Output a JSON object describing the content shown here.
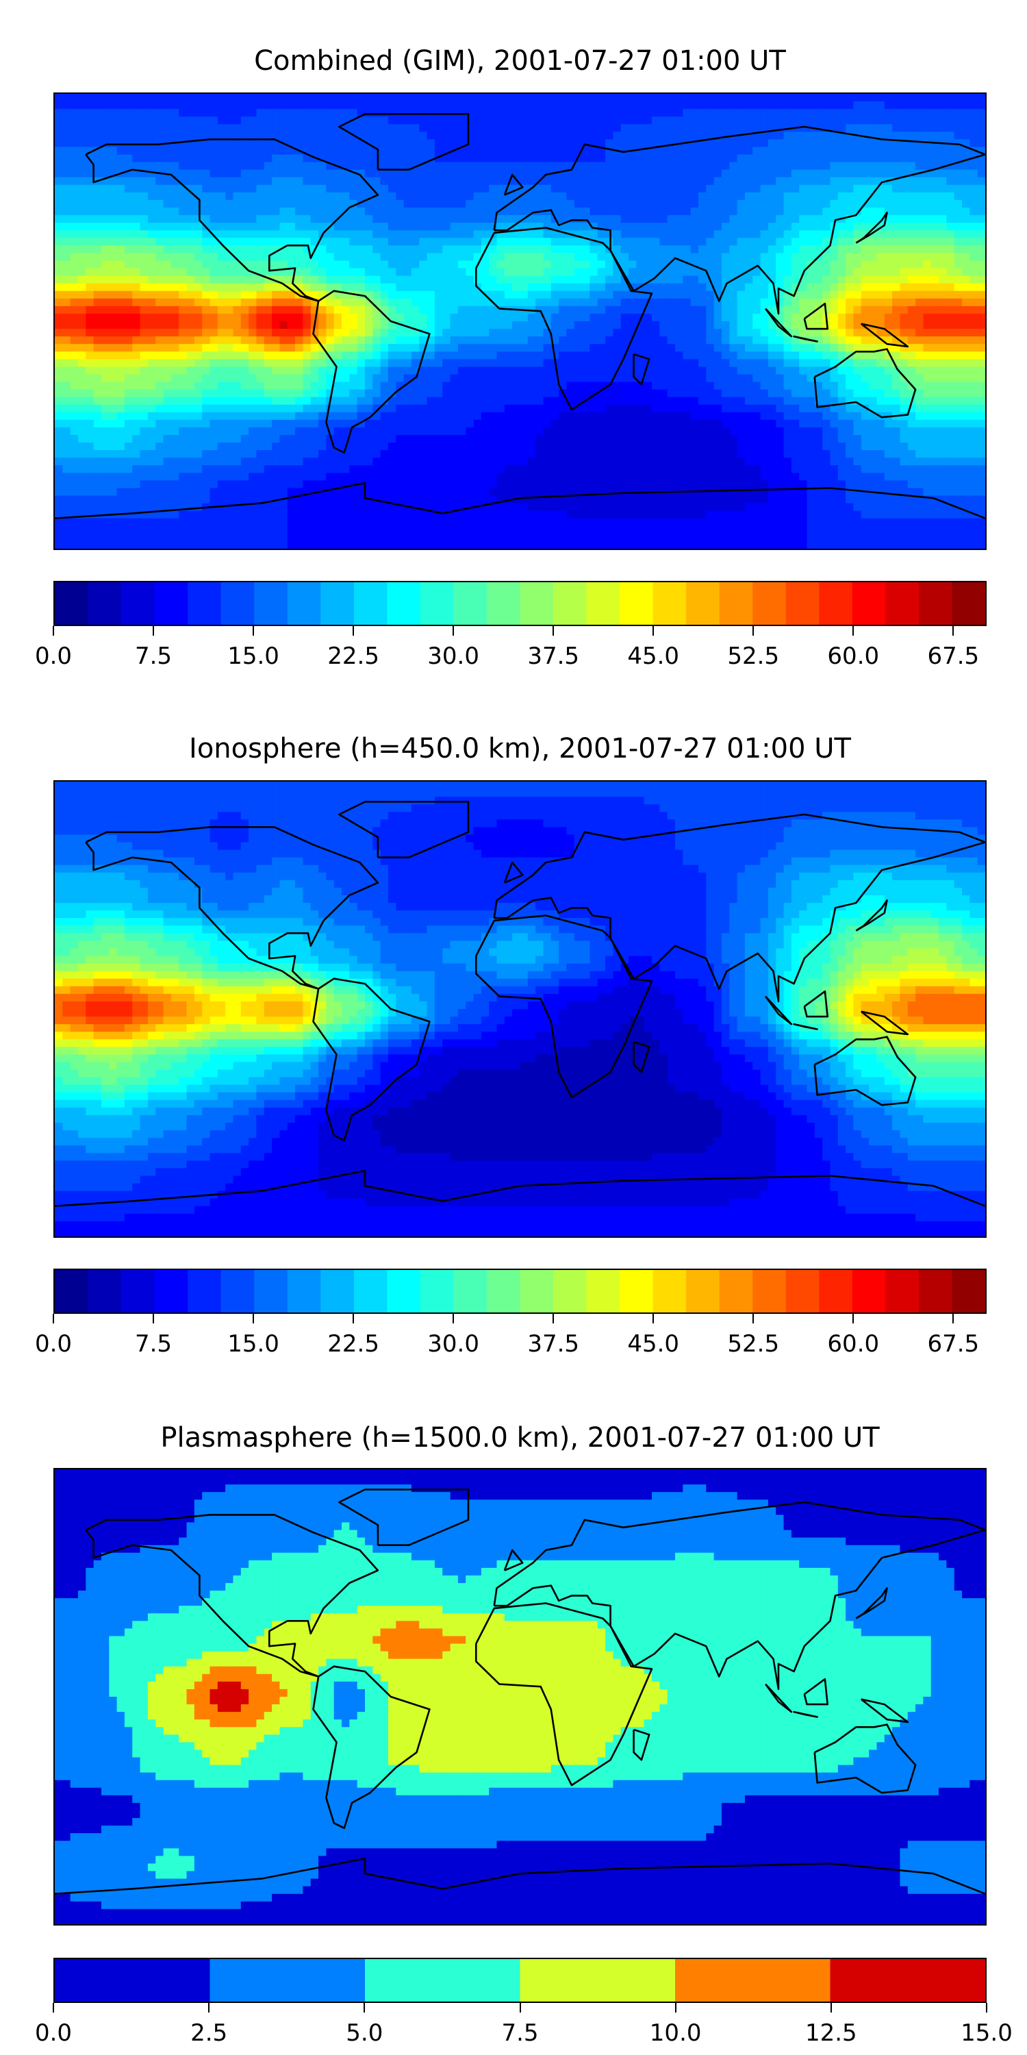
{
  "chart_data": [
    {
      "type": "heatmap",
      "title": "Combined (GIM), 2001-07-27 01:00 UT",
      "lon": [
        -180,
        -157.5,
        -135,
        -112.5,
        -90,
        -67.5,
        -45,
        -22.5,
        0,
        22.5,
        45,
        67.5,
        90,
        112.5,
        135,
        157.5,
        180
      ],
      "lat": [
        90,
        67.5,
        45,
        22.5,
        0,
        -22.5,
        -45,
        -67.5,
        -90
      ],
      "values": [
        [
          12,
          12,
          12,
          12,
          12,
          12,
          12,
          12,
          12,
          12,
          12,
          12,
          12,
          12,
          12,
          12,
          12
        ],
        [
          15,
          15,
          14,
          13,
          15,
          14,
          13,
          12,
          12,
          12,
          13,
          14,
          15,
          16,
          17,
          16,
          15
        ],
        [
          22,
          22,
          20,
          18,
          20,
          18,
          15,
          15,
          17,
          15,
          14,
          15,
          18,
          22,
          25,
          24,
          22
        ],
        [
          35,
          38,
          35,
          30,
          30,
          25,
          22,
          25,
          32,
          28,
          20,
          18,
          22,
          30,
          38,
          40,
          35
        ],
        [
          58,
          62,
          58,
          52,
          63,
          45,
          30,
          22,
          20,
          15,
          12,
          14,
          25,
          38,
          52,
          58,
          58
        ],
        [
          35,
          38,
          35,
          30,
          35,
          25,
          15,
          12,
          12,
          10,
          10,
          12,
          15,
          20,
          28,
          35,
          35
        ],
        [
          22,
          24,
          20,
          18,
          15,
          12,
          10,
          10,
          8,
          6,
          5,
          6,
          8,
          12,
          18,
          22,
          22
        ],
        [
          15,
          15,
          14,
          12,
          10,
          9,
          8,
          8,
          7,
          6,
          5,
          6,
          7,
          10,
          14,
          15,
          15
        ],
        [
          10,
          10,
          10,
          10,
          10,
          10,
          10,
          10,
          10,
          10,
          10,
          10,
          10,
          10,
          10,
          10,
          10
        ]
      ],
      "colorbar": {
        "min": 0,
        "max": 70,
        "step": 2.5,
        "colormap": "jet",
        "tick_labels": [
          "0.0",
          "7.5",
          "15.0",
          "22.5",
          "30.0",
          "37.5",
          "45.0",
          "52.5",
          "60.0",
          "67.5"
        ],
        "tick_values": [
          0,
          7.5,
          15,
          22.5,
          30,
          37.5,
          45,
          52.5,
          60,
          67.5
        ]
      }
    },
    {
      "type": "heatmap",
      "title": "Ionosphere  (h=450.0 km), 2001-07-27 01:00 UT",
      "lon": [
        -180,
        -157.5,
        -135,
        -112.5,
        -90,
        -67.5,
        -45,
        -22.5,
        0,
        22.5,
        45,
        67.5,
        90,
        112.5,
        135,
        157.5,
        180
      ],
      "lat": [
        90,
        67.5,
        45,
        22.5,
        0,
        -22.5,
        -45,
        -67.5,
        -90
      ],
      "values": [
        [
          13,
          13,
          13,
          13,
          13,
          13,
          13,
          13,
          13,
          13,
          13,
          13,
          13,
          13,
          13,
          13,
          13
        ],
        [
          15,
          15,
          14,
          12,
          14,
          13,
          12,
          10,
          9,
          10,
          11,
          13,
          14,
          16,
          17,
          16,
          15
        ],
        [
          22,
          22,
          19,
          16,
          18,
          15,
          12,
          11,
          12,
          10,
          10,
          12,
          16,
          22,
          25,
          24,
          22
        ],
        [
          32,
          35,
          32,
          26,
          24,
          20,
          16,
          18,
          22,
          16,
          10,
          12,
          18,
          28,
          36,
          38,
          32
        ],
        [
          55,
          60,
          52,
          45,
          50,
          35,
          22,
          15,
          10,
          7,
          5,
          8,
          18,
          32,
          48,
          55,
          55
        ],
        [
          32,
          35,
          30,
          25,
          22,
          15,
          8,
          5,
          5,
          4,
          4,
          6,
          10,
          18,
          26,
          32,
          32
        ],
        [
          20,
          22,
          18,
          15,
          10,
          6,
          4,
          3,
          3,
          3,
          3,
          4,
          6,
          10,
          16,
          20,
          20
        ],
        [
          13,
          13,
          12,
          10,
          8,
          7,
          6,
          6,
          6,
          6,
          6,
          6,
          7,
          9,
          12,
          13,
          13
        ],
        [
          9,
          9,
          9,
          9,
          9,
          9,
          9,
          9,
          9,
          9,
          9,
          9,
          9,
          9,
          9,
          9,
          9
        ]
      ],
      "colorbar": {
        "min": 0,
        "max": 70,
        "step": 2.5,
        "colormap": "jet",
        "tick_labels": [
          "0.0",
          "7.5",
          "15.0",
          "22.5",
          "30.0",
          "37.5",
          "45.0",
          "52.5",
          "60.0",
          "67.5"
        ],
        "tick_values": [
          0,
          7.5,
          15,
          22.5,
          30,
          37.5,
          45,
          52.5,
          60,
          67.5
        ]
      }
    },
    {
      "type": "heatmap",
      "title": "Plasmasphere (h=1500.0 km), 2001-07-27 01:00 UT",
      "lon": [
        -180,
        -157.5,
        -135,
        -112.5,
        -90,
        -67.5,
        -45,
        -22.5,
        0,
        22.5,
        45,
        67.5,
        90,
        112.5,
        135,
        157.5,
        180
      ],
      "lat": [
        90,
        67.5,
        45,
        22.5,
        0,
        -22.5,
        -45,
        -67.5,
        -90
      ],
      "values": [
        [
          2,
          2,
          2,
          2,
          2,
          2,
          2,
          2,
          2,
          2,
          2,
          2,
          2,
          2,
          2,
          2,
          2
        ],
        [
          2,
          2,
          2,
          4,
          4,
          5,
          4,
          3,
          3,
          3,
          3,
          4,
          3,
          2,
          2,
          2,
          2
        ],
        [
          2,
          3,
          4,
          5,
          6,
          6,
          6,
          5,
          6,
          6,
          6,
          6,
          6,
          6,
          4,
          3,
          2
        ],
        [
          4,
          5,
          6,
          7,
          8,
          9,
          11,
          10,
          8,
          8,
          7,
          6,
          6,
          6,
          5,
          5,
          4
        ],
        [
          4,
          5,
          9,
          13.5,
          10,
          4,
          8,
          9,
          9,
          9,
          8,
          7,
          6,
          6,
          6,
          5,
          4
        ],
        [
          3,
          4,
          7,
          8,
          6,
          6,
          8,
          9,
          9,
          8,
          7,
          6,
          6,
          6,
          5,
          4,
          3
        ],
        [
          2,
          2,
          3,
          3,
          3,
          4,
          4,
          4,
          3,
          3,
          3,
          3,
          2,
          2,
          2,
          2,
          2
        ],
        [
          3,
          4,
          5.5,
          4,
          3,
          2,
          2,
          2,
          2,
          2,
          2,
          2,
          2,
          2,
          2,
          3,
          3
        ],
        [
          2,
          2,
          2,
          2,
          2,
          2,
          2,
          2,
          2,
          2,
          2,
          2,
          2,
          2,
          2,
          2,
          2
        ]
      ],
      "colorbar": {
        "min": 0,
        "max": 15,
        "step": 2.5,
        "colormap": "jet",
        "tick_labels": [
          "0.0",
          "2.5",
          "5.0",
          "7.5",
          "10.0",
          "12.5",
          "15.0"
        ],
        "tick_values": [
          0,
          2.5,
          5,
          7.5,
          10,
          12.5,
          15
        ]
      }
    }
  ]
}
